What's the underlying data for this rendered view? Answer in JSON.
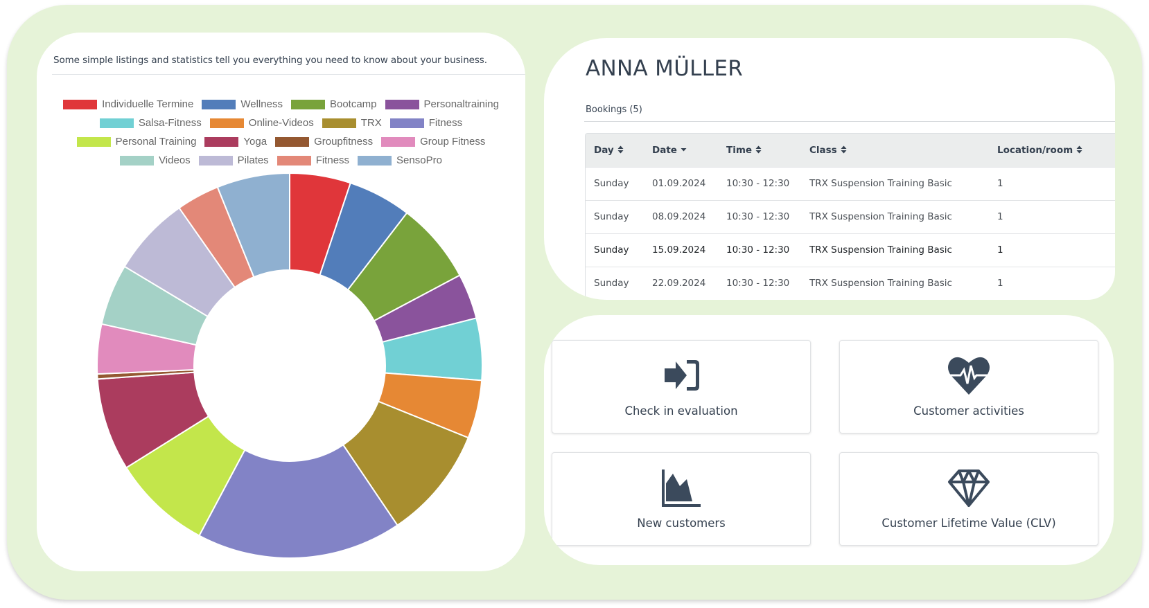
{
  "left_panel": {
    "subtitle": "Some simple listings and statistics tell you everything you need to know about your business."
  },
  "chart_data": {
    "type": "pie",
    "variant": "doughnut",
    "title": "",
    "legend_position": "top",
    "categories": [
      "Individuelle Termine",
      "Wellness",
      "Bootcamp",
      "Personaltraining",
      "Salsa-Fitness",
      "Online-Videos",
      "TRX",
      "Fitness",
      "Personal Training",
      "Yoga",
      "Groupfitness",
      "Group Fitness",
      "Videos",
      "Pilates",
      "Fitness",
      "SensoPro"
    ],
    "values": [
      18.4,
      19.1,
      24.5,
      13.7,
      18.7,
      17.6,
      34.0,
      62.0,
      30.0,
      28.0,
      1.5,
      15.0,
      18.5,
      24.0,
      13.0,
      22.0
    ],
    "value_unit": "degrees of 360 (estimated share)",
    "colors": [
      "#e0363a",
      "#527dba",
      "#79a33b",
      "#8a539c",
      "#71d0d4",
      "#e68834",
      "#a88e2f",
      "#8283c6",
      "#c3e64b",
      "#ab3c5e",
      "#945831",
      "#e18bbd",
      "#a4d1c6",
      "#bdbad6",
      "#e38878",
      "#8fb0d0"
    ],
    "legend_rows": [
      [
        0,
        1,
        2,
        3
      ],
      [
        4,
        5,
        6,
        7
      ],
      [
        8,
        9,
        10,
        11
      ],
      [
        12,
        13,
        14,
        15
      ]
    ]
  },
  "customer": {
    "name": "ANNA MÜLLER",
    "bookings_label": "Bookings (5)"
  },
  "table": {
    "columns": [
      {
        "label": "Day",
        "sort": "both"
      },
      {
        "label": "Date",
        "sort": "desc"
      },
      {
        "label": "Time",
        "sort": "both"
      },
      {
        "label": "Class",
        "sort": "both"
      },
      {
        "label": "Location/room",
        "sort": "both"
      }
    ],
    "rows": [
      [
        "Sunday",
        "01.09.2024",
        "10:30 - 12:30",
        "TRX Suspension Training Basic",
        "1"
      ],
      [
        "Sunday",
        "08.09.2024",
        "10:30 - 12:30",
        "TRX Suspension Training Basic",
        "1"
      ],
      [
        "Sunday",
        "15.09.2024",
        "10:30 - 12:30",
        "TRX Suspension Training Basic",
        "1"
      ],
      [
        "Sunday",
        "22.09.2024",
        "10:30 - 12:30",
        "TRX Suspension Training Basic",
        "1"
      ]
    ],
    "sort_icons": {
      "both": "▴▾",
      "desc": "▾"
    }
  },
  "cards": [
    {
      "label": "Check in evaluation",
      "icon": "sign-in-icon"
    },
    {
      "label": "Customer activities",
      "icon": "heartbeat-icon"
    },
    {
      "label": "New customers",
      "icon": "area-chart-icon"
    },
    {
      "label": "Customer Lifetime Value (CLV)",
      "icon": "diamond-icon"
    }
  ],
  "colors": {
    "frame": "#e6f3d8",
    "text_dark": "#34404f",
    "icon": "#3b4a5c"
  }
}
